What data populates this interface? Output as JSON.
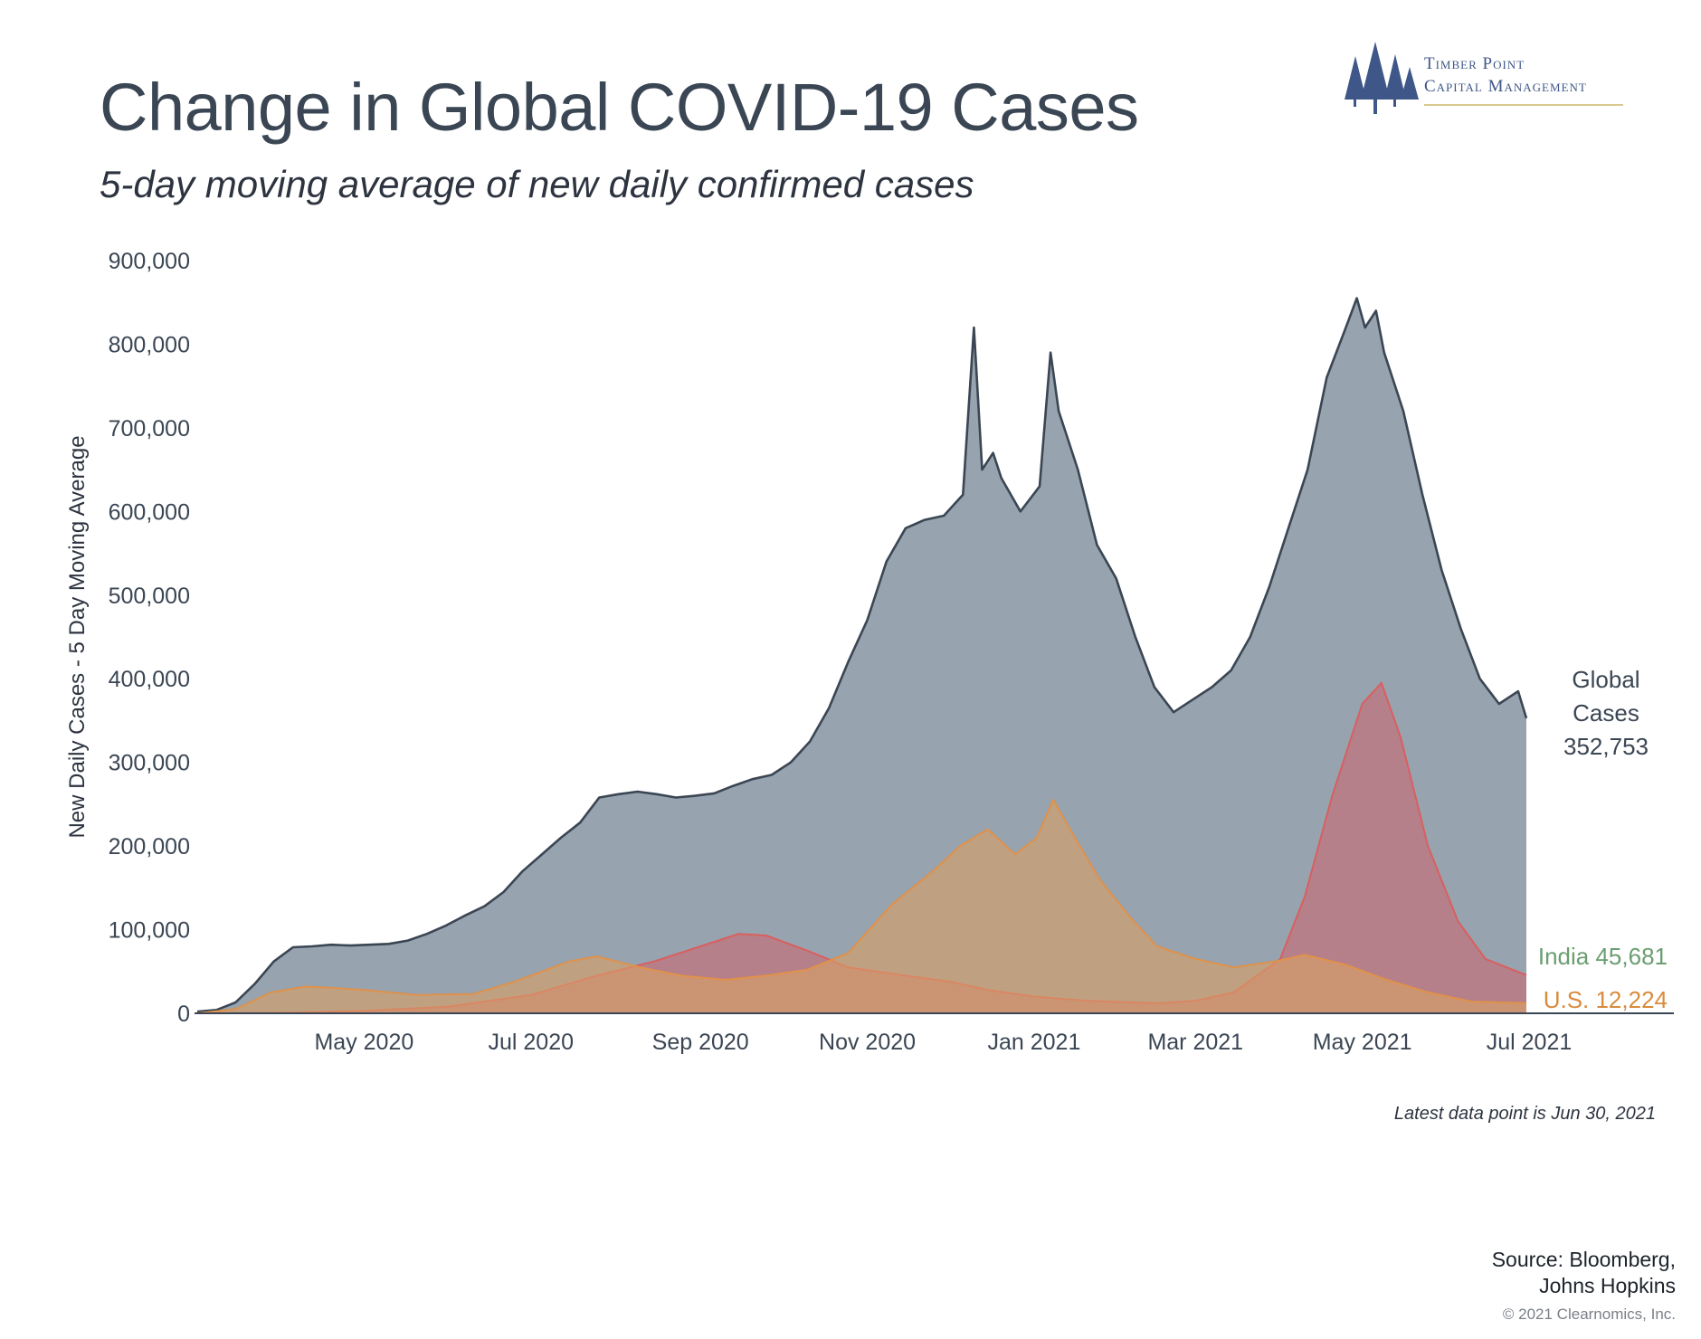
{
  "header": {
    "title": "Change in Global COVID-19 Cases",
    "subtitle": "5-day moving average of new daily confirmed cases"
  },
  "logo": {
    "line1": "Timber Point",
    "line2": "Capital Management",
    "icon": "pine-trees-icon"
  },
  "footer": {
    "note": "Latest data point is Jun 30, 2021",
    "source_line1": "Source: Bloomberg,",
    "source_line2": "Johns Hopkins",
    "copyright": "© 2021 Clearnomics, Inc."
  },
  "colors": {
    "global_fill": "#97a3ae",
    "global_line": "#3b4654",
    "india_fill": "#c86b72",
    "india_line": "#d95f5f",
    "us_fill": "#d9a066",
    "us_line": "#e0914a",
    "india_label": "#6a9e70",
    "us_label": "#d98b3c"
  },
  "chart_data": {
    "type": "area",
    "title": "Change in Global COVID-19 Cases",
    "subtitle": "5-day moving average of new daily confirmed cases",
    "xlabel": "",
    "ylabel": "New Daily Cases - 5 Day Moving Average",
    "ylim": [
      0,
      900000
    ],
    "xlim": [
      "2020-03-01",
      "2021-06-30"
    ],
    "y_ticks": [
      0,
      100000,
      200000,
      300000,
      400000,
      500000,
      600000,
      700000,
      800000,
      900000
    ],
    "y_tick_labels": [
      "0",
      "100,000",
      "200,000",
      "300,000",
      "400,000",
      "500,000",
      "600,000",
      "700,000",
      "800,000",
      "900,000"
    ],
    "x_ticks": [
      "2020-05-01",
      "2020-07-01",
      "2020-09-01",
      "2020-11-01",
      "2021-01-01",
      "2021-03-01",
      "2021-05-01",
      "2021-07-01"
    ],
    "x_tick_labels": [
      "May 2020",
      "Jul 2020",
      "Sep 2020",
      "Nov 2020",
      "Jan 2021",
      "Mar 2021",
      "May 2021",
      "Jul 2021"
    ],
    "grid": false,
    "legend": "direct labels at right end of series",
    "series": [
      {
        "name": "Global Cases",
        "label_lines": [
          "Global",
          "Cases",
          "352,753"
        ],
        "points": [
          [
            "2020-03-01",
            2000
          ],
          [
            "2020-03-08",
            4000
          ],
          [
            "2020-03-15",
            13000
          ],
          [
            "2020-03-22",
            35000
          ],
          [
            "2020-03-29",
            62000
          ],
          [
            "2020-04-05",
            79000
          ],
          [
            "2020-04-12",
            80000
          ],
          [
            "2020-04-19",
            82000
          ],
          [
            "2020-04-26",
            81000
          ],
          [
            "2020-05-03",
            82000
          ],
          [
            "2020-05-10",
            83000
          ],
          [
            "2020-05-17",
            87000
          ],
          [
            "2020-05-24",
            95000
          ],
          [
            "2020-05-31",
            105000
          ],
          [
            "2020-06-07",
            117000
          ],
          [
            "2020-06-14",
            128000
          ],
          [
            "2020-06-21",
            145000
          ],
          [
            "2020-06-28",
            170000
          ],
          [
            "2020-07-05",
            190000
          ],
          [
            "2020-07-12",
            210000
          ],
          [
            "2020-07-19",
            228000
          ],
          [
            "2020-07-26",
            258000
          ],
          [
            "2020-08-02",
            262000
          ],
          [
            "2020-08-09",
            265000
          ],
          [
            "2020-08-16",
            262000
          ],
          [
            "2020-08-23",
            258000
          ],
          [
            "2020-08-30",
            260000
          ],
          [
            "2020-09-06",
            263000
          ],
          [
            "2020-09-13",
            272000
          ],
          [
            "2020-09-20",
            280000
          ],
          [
            "2020-09-27",
            285000
          ],
          [
            "2020-10-04",
            300000
          ],
          [
            "2020-10-11",
            325000
          ],
          [
            "2020-10-18",
            365000
          ],
          [
            "2020-10-25",
            420000
          ],
          [
            "2020-11-01",
            470000
          ],
          [
            "2020-11-08",
            540000
          ],
          [
            "2020-11-15",
            580000
          ],
          [
            "2020-11-22",
            590000
          ],
          [
            "2020-11-29",
            595000
          ],
          [
            "2020-12-06",
            620000
          ],
          [
            "2020-12-10",
            820000
          ],
          [
            "2020-12-13",
            650000
          ],
          [
            "2020-12-17",
            670000
          ],
          [
            "2020-12-20",
            640000
          ],
          [
            "2020-12-27",
            600000
          ],
          [
            "2021-01-03",
            630000
          ],
          [
            "2021-01-07",
            790000
          ],
          [
            "2021-01-10",
            720000
          ],
          [
            "2021-01-17",
            650000
          ],
          [
            "2021-01-24",
            560000
          ],
          [
            "2021-01-31",
            520000
          ],
          [
            "2021-02-07",
            450000
          ],
          [
            "2021-02-14",
            390000
          ],
          [
            "2021-02-21",
            360000
          ],
          [
            "2021-02-28",
            375000
          ],
          [
            "2021-03-07",
            390000
          ],
          [
            "2021-03-14",
            410000
          ],
          [
            "2021-03-21",
            450000
          ],
          [
            "2021-03-28",
            510000
          ],
          [
            "2021-04-04",
            580000
          ],
          [
            "2021-04-11",
            650000
          ],
          [
            "2021-04-18",
            760000
          ],
          [
            "2021-04-25",
            820000
          ],
          [
            "2021-04-29",
            855000
          ],
          [
            "2021-05-02",
            820000
          ],
          [
            "2021-05-06",
            840000
          ],
          [
            "2021-05-09",
            790000
          ],
          [
            "2021-05-16",
            720000
          ],
          [
            "2021-05-23",
            620000
          ],
          [
            "2021-05-30",
            530000
          ],
          [
            "2021-06-06",
            460000
          ],
          [
            "2021-06-13",
            400000
          ],
          [
            "2021-06-20",
            370000
          ],
          [
            "2021-06-27",
            385000
          ],
          [
            "2021-06-30",
            352753
          ]
        ]
      },
      {
        "name": "India",
        "label": "India 45,681",
        "points": [
          [
            "2020-03-01",
            0
          ],
          [
            "2020-04-01",
            500
          ],
          [
            "2020-05-01",
            3000
          ],
          [
            "2020-06-01",
            8000
          ],
          [
            "2020-07-01",
            22000
          ],
          [
            "2020-07-25",
            45000
          ],
          [
            "2020-08-15",
            62000
          ],
          [
            "2020-09-01",
            80000
          ],
          [
            "2020-09-15",
            95000
          ],
          [
            "2020-09-25",
            93000
          ],
          [
            "2020-10-10",
            75000
          ],
          [
            "2020-10-25",
            55000
          ],
          [
            "2020-11-15",
            45000
          ],
          [
            "2020-12-01",
            38000
          ],
          [
            "2020-12-15",
            28000
          ],
          [
            "2021-01-01",
            20000
          ],
          [
            "2021-01-20",
            15000
          ],
          [
            "2021-02-15",
            12000
          ],
          [
            "2021-03-01",
            15000
          ],
          [
            "2021-03-15",
            25000
          ],
          [
            "2021-04-01",
            65000
          ],
          [
            "2021-04-10",
            140000
          ],
          [
            "2021-04-20",
            260000
          ],
          [
            "2021-05-01",
            370000
          ],
          [
            "2021-05-08",
            395000
          ],
          [
            "2021-05-15",
            330000
          ],
          [
            "2021-05-25",
            200000
          ],
          [
            "2021-06-05",
            110000
          ],
          [
            "2021-06-15",
            65000
          ],
          [
            "2021-06-30",
            45681
          ]
        ]
      },
      {
        "name": "U.S.",
        "label": "U.S. 12,224",
        "points": [
          [
            "2020-03-01",
            0
          ],
          [
            "2020-03-15",
            5000
          ],
          [
            "2020-03-28",
            25000
          ],
          [
            "2020-04-10",
            32000
          ],
          [
            "2020-05-01",
            28000
          ],
          [
            "2020-05-20",
            22000
          ],
          [
            "2020-06-10",
            23000
          ],
          [
            "2020-06-25",
            38000
          ],
          [
            "2020-07-15",
            62000
          ],
          [
            "2020-07-25",
            68000
          ],
          [
            "2020-08-10",
            55000
          ],
          [
            "2020-08-25",
            45000
          ],
          [
            "2020-09-10",
            40000
          ],
          [
            "2020-09-25",
            45000
          ],
          [
            "2020-10-10",
            52000
          ],
          [
            "2020-10-25",
            72000
          ],
          [
            "2020-11-10",
            130000
          ],
          [
            "2020-11-25",
            170000
          ],
          [
            "2020-12-05",
            200000
          ],
          [
            "2020-12-15",
            220000
          ],
          [
            "2020-12-25",
            190000
          ],
          [
            "2021-01-02",
            210000
          ],
          [
            "2021-01-08",
            255000
          ],
          [
            "2021-01-15",
            215000
          ],
          [
            "2021-01-25",
            160000
          ],
          [
            "2021-02-05",
            115000
          ],
          [
            "2021-02-15",
            80000
          ],
          [
            "2021-03-01",
            65000
          ],
          [
            "2021-03-15",
            55000
          ],
          [
            "2021-03-30",
            62000
          ],
          [
            "2021-04-10",
            70000
          ],
          [
            "2021-04-25",
            58000
          ],
          [
            "2021-05-10",
            40000
          ],
          [
            "2021-05-25",
            25000
          ],
          [
            "2021-06-10",
            14000
          ],
          [
            "2021-06-30",
            12224
          ]
        ]
      }
    ]
  }
}
